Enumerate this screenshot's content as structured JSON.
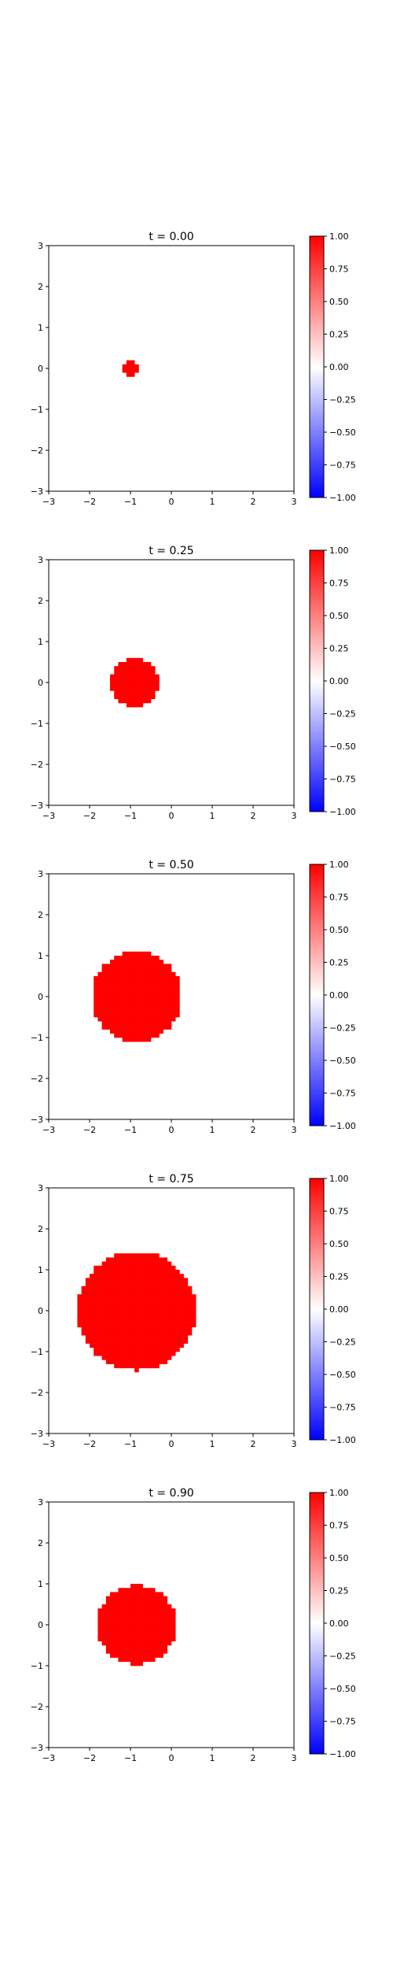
{
  "chart_data": [
    {
      "type": "heatmap",
      "title": "t = 0.00",
      "xlim": [
        -3,
        3
      ],
      "ylim": [
        -3,
        3
      ],
      "x_ticks": [
        "−3",
        "−2",
        "−1",
        "0",
        "1",
        "2",
        "3"
      ],
      "y_ticks": [
        "3",
        "2",
        "1",
        "0",
        "−1",
        "−2",
        "−3"
      ],
      "blob": {
        "center_x": -1.0,
        "center_y": 0.0,
        "radius": 0.16,
        "value": 1.0
      },
      "colorbar": {
        "colormap": "bwr",
        "min": -1.0,
        "max": 1.0,
        "ticks": [
          "1.00",
          "0.75",
          "0.50",
          "0.25",
          "0.00",
          "−0.25",
          "−0.50",
          "−0.75",
          "−1.00"
        ]
      },
      "grid": false
    },
    {
      "type": "heatmap",
      "title": "t = 0.25",
      "xlim": [
        -3,
        3
      ],
      "ylim": [
        -3,
        3
      ],
      "x_ticks": [
        "−3",
        "−2",
        "−1",
        "0",
        "1",
        "2",
        "3"
      ],
      "y_ticks": [
        "3",
        "2",
        "1",
        "0",
        "−1",
        "−2",
        "−3"
      ],
      "blob": {
        "center_x": -0.9,
        "center_y": 0.0,
        "radius": 0.6,
        "value": 1.0
      },
      "colorbar": {
        "colormap": "bwr",
        "min": -1.0,
        "max": 1.0,
        "ticks": [
          "1.00",
          "0.75",
          "0.50",
          "0.25",
          "0.00",
          "−0.25",
          "−0.50",
          "−0.75",
          "−1.00"
        ]
      },
      "grid": false
    },
    {
      "type": "heatmap",
      "title": "t = 0.50",
      "xlim": [
        -3,
        3
      ],
      "ylim": [
        -3,
        3
      ],
      "x_ticks": [
        "−3",
        "−2",
        "−1",
        "0",
        "1",
        "2",
        "3"
      ],
      "y_ticks": [
        "3",
        "2",
        "1",
        "0",
        "−1",
        "−2",
        "−3"
      ],
      "blob": {
        "center_x": -0.85,
        "center_y": 0.0,
        "radius": 1.1,
        "value": 1.0
      },
      "colorbar": {
        "colormap": "bwr",
        "min": -1.0,
        "max": 1.0,
        "ticks": [
          "1.00",
          "0.75",
          "0.50",
          "0.25",
          "0.00",
          "−0.25",
          "−0.50",
          "−0.75",
          "−1.00"
        ]
      },
      "grid": false
    },
    {
      "type": "heatmap",
      "title": "t = 0.75",
      "xlim": [
        -3,
        3
      ],
      "ylim": [
        -3,
        3
      ],
      "x_ticks": [
        "−3",
        "−2",
        "−1",
        "0",
        "1",
        "2",
        "3"
      ],
      "y_ticks": [
        "3",
        "2",
        "1",
        "0",
        "−1",
        "−2",
        "−3"
      ],
      "blob": {
        "center_x": -0.85,
        "center_y": 0.0,
        "radius": 1.45,
        "value": 1.0
      },
      "colorbar": {
        "colormap": "bwr",
        "min": -1.0,
        "max": 1.0,
        "ticks": [
          "1.00",
          "0.75",
          "0.50",
          "0.25",
          "0.00",
          "−0.25",
          "−0.50",
          "−0.75",
          "−1.00"
        ]
      },
      "grid": false
    },
    {
      "type": "heatmap",
      "title": "t = 0.90",
      "xlim": [
        -3,
        3
      ],
      "ylim": [
        -3,
        3
      ],
      "x_ticks": [
        "−3",
        "−2",
        "−1",
        "0",
        "1",
        "2",
        "3"
      ],
      "y_ticks": [
        "3",
        "2",
        "1",
        "0",
        "−1",
        "−2",
        "−3"
      ],
      "blob": {
        "center_x": -0.85,
        "center_y": 0.0,
        "radius": 0.97,
        "value": 1.0
      },
      "colorbar": {
        "colormap": "bwr",
        "min": -1.0,
        "max": 1.0,
        "ticks": [
          "1.00",
          "0.75",
          "0.50",
          "0.25",
          "0.00",
          "−0.25",
          "−0.50",
          "−0.75",
          "−1.00"
        ]
      },
      "grid": false
    }
  ],
  "colors": {
    "positive": "#ff0000",
    "zero": "#ffffff",
    "negative": "#0000ff",
    "axis": "#000000"
  }
}
